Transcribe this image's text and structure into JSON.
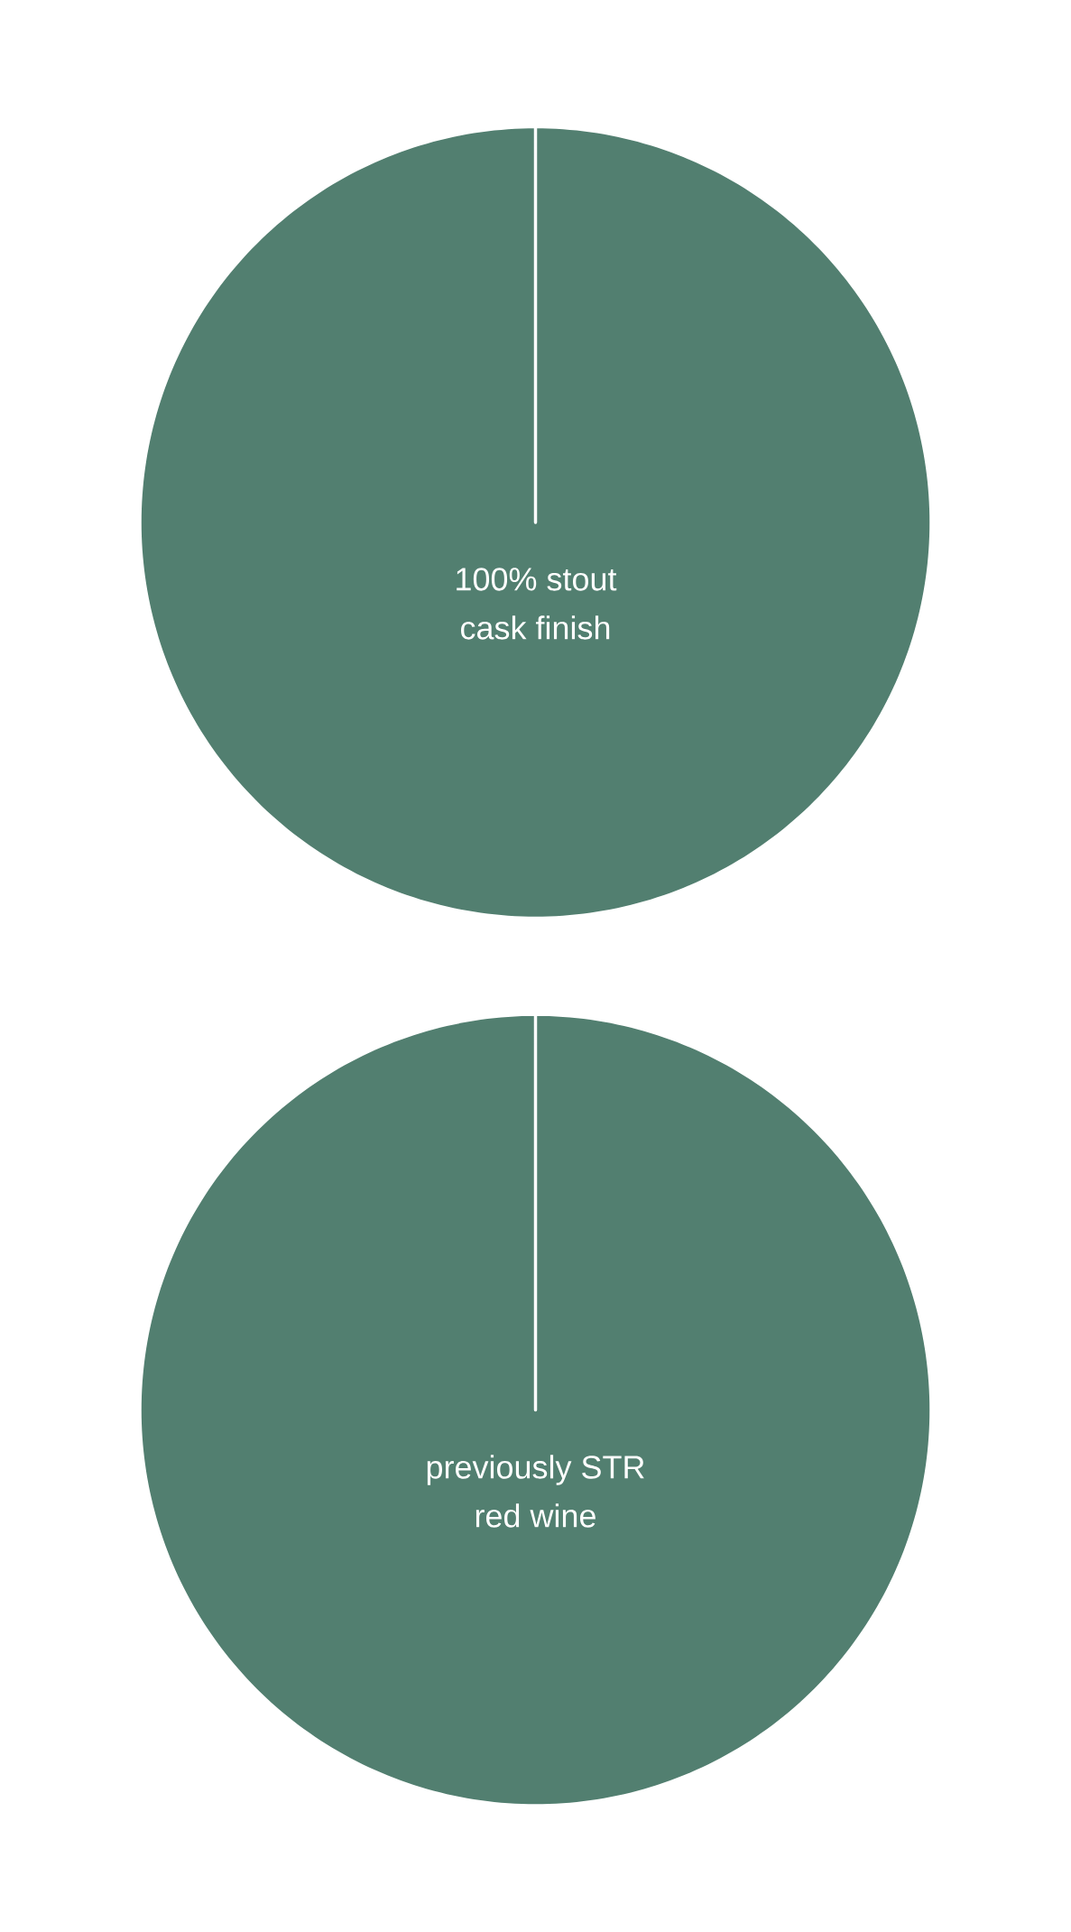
{
  "chart_data": [
    {
      "type": "pie",
      "categories": [
        "100% stout cask finish"
      ],
      "values": [
        100
      ],
      "colors": [
        "#527f70"
      ]
    },
    {
      "type": "pie",
      "categories": [
        "previously STR red wine"
      ],
      "values": [
        100
      ],
      "colors": [
        "#527f70"
      ]
    }
  ]
}
